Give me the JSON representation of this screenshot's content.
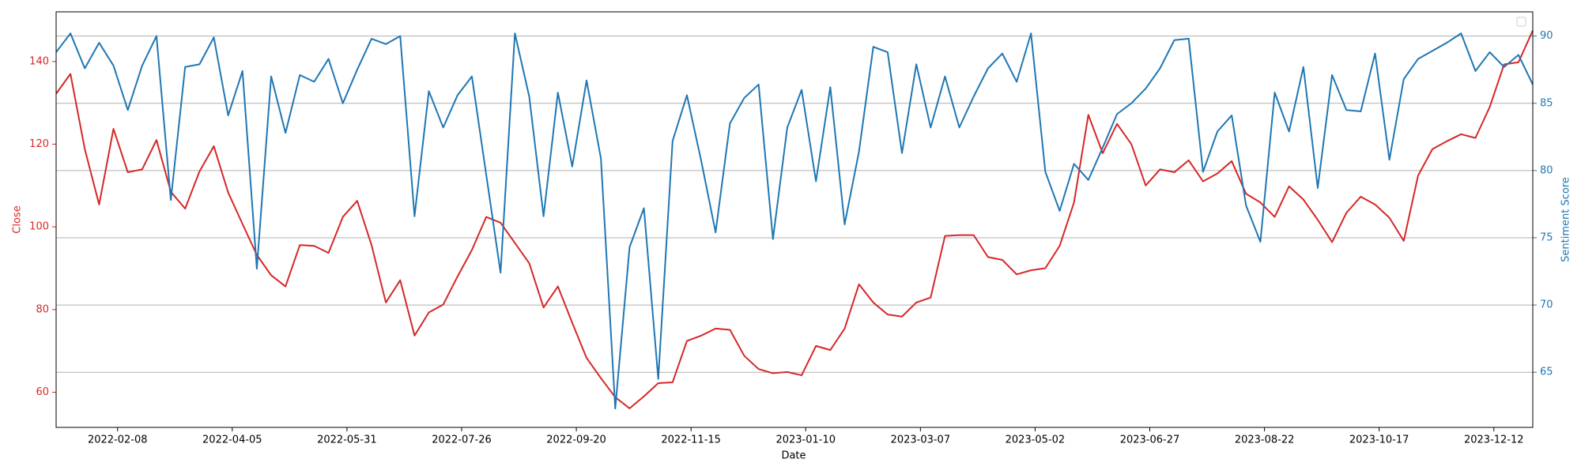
{
  "chart_data": {
    "type": "line",
    "xlabel": "Date",
    "ylabel": "Close",
    "y2label": "Sentiment Score",
    "x": [
      "2022-01-09",
      "2022-01-16",
      "2022-01-23",
      "2022-01-30",
      "2022-02-06",
      "2022-02-13",
      "2022-02-20",
      "2022-02-27",
      "2022-03-06",
      "2022-03-13",
      "2022-03-20",
      "2022-03-27",
      "2022-04-03",
      "2022-04-10",
      "2022-04-17",
      "2022-04-24",
      "2022-05-01",
      "2022-05-08",
      "2022-05-15",
      "2022-05-22",
      "2022-05-29",
      "2022-06-05",
      "2022-06-12",
      "2022-06-19",
      "2022-06-26",
      "2022-07-03",
      "2022-07-10",
      "2022-07-17",
      "2022-07-24",
      "2022-07-31",
      "2022-08-07",
      "2022-08-14",
      "2022-08-21",
      "2022-08-28",
      "2022-09-04",
      "2022-09-11",
      "2022-09-18",
      "2022-09-25",
      "2022-10-02",
      "2022-10-09",
      "2022-10-16",
      "2022-10-23",
      "2022-10-30",
      "2022-11-06",
      "2022-11-13",
      "2022-11-20",
      "2022-11-27",
      "2022-12-04",
      "2022-12-11",
      "2022-12-18",
      "2022-12-25",
      "2023-01-01",
      "2023-01-08",
      "2023-01-15",
      "2023-01-22",
      "2023-01-29",
      "2023-02-05",
      "2023-02-12",
      "2023-02-19",
      "2023-02-26",
      "2023-03-05",
      "2023-03-12",
      "2023-03-19",
      "2023-03-26",
      "2023-04-02",
      "2023-04-09",
      "2023-04-16",
      "2023-04-23",
      "2023-04-30",
      "2023-05-07",
      "2023-05-14",
      "2023-05-21",
      "2023-05-28",
      "2023-06-04",
      "2023-06-11",
      "2023-06-18",
      "2023-06-25",
      "2023-07-02",
      "2023-07-09",
      "2023-07-16",
      "2023-07-23",
      "2023-07-30",
      "2023-08-06",
      "2023-08-13",
      "2023-08-20",
      "2023-08-27",
      "2023-09-03",
      "2023-09-10",
      "2023-09-17",
      "2023-09-24",
      "2023-10-01",
      "2023-10-08",
      "2023-10-15",
      "2023-10-22",
      "2023-10-29",
      "2023-11-05",
      "2023-11-12",
      "2023-11-19",
      "2023-11-26",
      "2023-12-03",
      "2023-12-10",
      "2023-12-17",
      "2023-12-24",
      "2023-12-31"
    ],
    "xlim": [
      "2022-01-09",
      "2023-12-31"
    ],
    "xticks": [
      "2022-02-08",
      "2022-04-05",
      "2022-05-31",
      "2022-07-26",
      "2022-09-20",
      "2022-11-15",
      "2023-01-10",
      "2023-03-07",
      "2023-05-02",
      "2023-06-27",
      "2023-08-22",
      "2023-10-17",
      "2023-12-12"
    ],
    "ylim": [
      51.5,
      152
    ],
    "yticks": [
      60,
      80,
      100,
      120,
      140
    ],
    "y2lim": [
      60.9,
      91.8
    ],
    "y2ticks": [
      65,
      70,
      75,
      80,
      85,
      90
    ],
    "grid": "y2",
    "legend": "upper right",
    "series": [
      {
        "name": "Close",
        "color": "#d62728",
        "values": [
          132.2,
          137,
          118.8,
          105.4,
          123.7,
          113.2,
          113.9,
          121,
          108.5,
          104.4,
          113.4,
          119.5,
          108.3,
          100.7,
          93.2,
          88.3,
          85.6,
          95.6,
          95.4,
          93.7,
          102.4,
          106.3,
          95.6,
          81.7,
          87.1,
          73.7,
          79.3,
          81.2,
          88,
          94.4,
          102.4,
          101,
          96.1,
          91.2,
          80.5,
          85.6,
          76.8,
          68.3,
          63.4,
          58.8,
          56.1,
          59,
          62.2,
          62.4,
          72.4,
          73.7,
          75.4,
          75.1,
          68.8,
          65.6,
          64.6,
          64.9,
          64.1,
          71.2,
          70.2,
          75.4,
          86.1,
          81.7,
          78.8,
          78.3,
          81.7,
          82.9,
          97.8,
          98,
          98,
          92.7,
          92,
          88.5,
          89.5,
          90,
          95.4,
          105.9,
          127.1,
          117.8,
          124.9,
          120,
          110,
          113.9,
          113.2,
          116.1,
          111,
          112.9,
          115.9,
          108,
          105.9,
          102.4,
          109.8,
          106.6,
          101.7,
          96.3,
          103.4,
          107.3,
          105.4,
          102.2,
          96.6,
          112.4,
          118.8,
          120.7,
          122.4,
          121.5,
          129,
          139.3,
          139.8,
          147.5
        ]
      },
      {
        "name": "Sentiment Score",
        "color": "#1f77b4",
        "axis": "y2",
        "values": [
          88.8,
          90.2,
          87.6,
          89.5,
          87.8,
          84.5,
          87.8,
          90,
          77.8,
          87.7,
          87.9,
          89.9,
          84.1,
          87.4,
          72.7,
          87,
          82.8,
          87.1,
          86.6,
          88.3,
          85,
          87.5,
          89.8,
          89.4,
          90,
          76.6,
          85.9,
          83.2,
          85.6,
          87,
          79.7,
          72.4,
          90.2,
          85.5,
          76.6,
          85.8,
          80.3,
          86.7,
          80.9,
          62.3,
          74.3,
          77.2,
          64.5,
          82.2,
          85.6,
          80.7,
          75.4,
          83.5,
          85.4,
          86.4,
          74.9,
          83.2,
          86,
          79.2,
          86.2,
          76,
          81.4,
          89.2,
          88.8,
          81.3,
          87.9,
          83.2,
          87,
          83.2,
          85.5,
          87.6,
          88.7,
          86.6,
          90.2,
          79.9,
          77,
          80.5,
          79.3,
          81.7,
          84.2,
          85,
          86.1,
          87.6,
          89.7,
          89.8,
          79.9,
          82.9,
          84.1,
          77.4,
          74.7,
          85.8,
          82.9,
          87.7,
          78.7,
          87.1,
          84.5,
          84.4,
          88.7,
          80.8,
          86.8,
          88.3,
          88.9,
          89.5,
          90.2,
          87.4,
          88.8,
          87.7,
          88.6,
          86.4
        ]
      }
    ]
  }
}
